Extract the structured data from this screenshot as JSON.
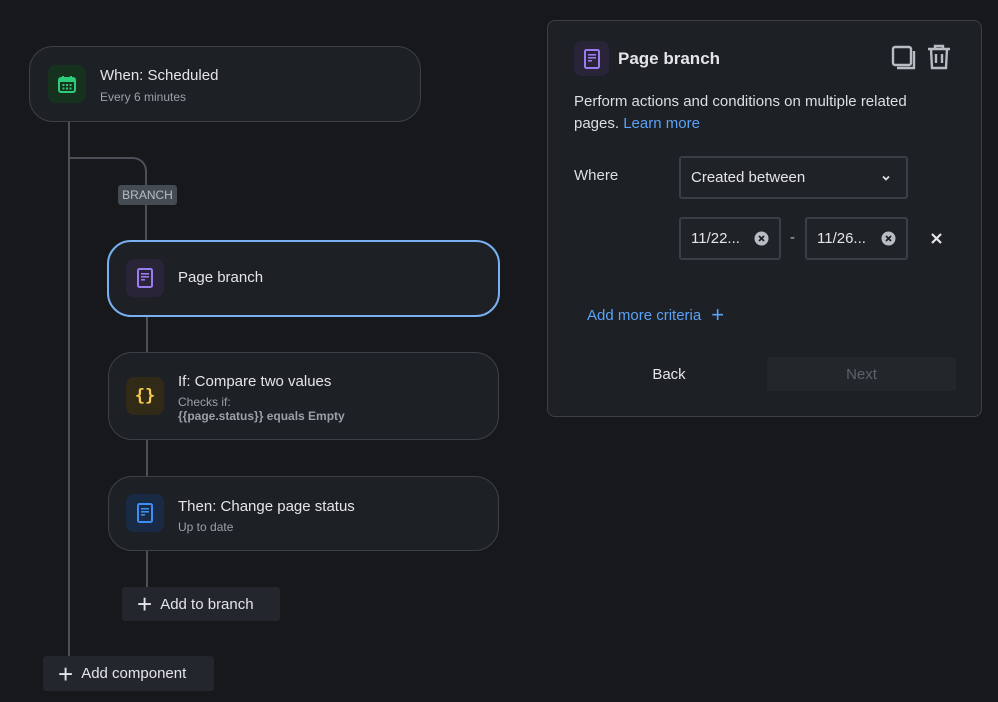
{
  "flow": {
    "trigger": {
      "title": "When: Scheduled",
      "subtitle": "Every 6 minutes",
      "icon": "calendar-icon",
      "color": "#2ecc7a"
    },
    "branch_label": "BRANCH",
    "steps": [
      {
        "title": "Page branch",
        "icon": "page-icon",
        "color": "#9b7cf0",
        "selected": true
      },
      {
        "title": "If: Compare two values",
        "subtitle": "Checks if:",
        "detail": "{{page.status}} equals Empty",
        "icon": "braces-icon",
        "color": "#f2c94c"
      },
      {
        "title": "Then: Change page status",
        "subtitle": "Up to date",
        "icon": "page-icon",
        "color": "#3d8df5"
      }
    ],
    "add_to_branch": "Add to branch",
    "add_component": "Add component"
  },
  "panel": {
    "title": "Page branch",
    "description": "Perform actions and conditions on multiple related pages.",
    "learn_more": "Learn more",
    "where_label": "Where",
    "condition_select": "Created between",
    "date_from": "11/22...",
    "date_separator": "-",
    "date_to": "11/26...",
    "add_more_criteria": "Add more criteria",
    "back": "Back",
    "next": "Next",
    "accent": "#5aa2f5"
  }
}
